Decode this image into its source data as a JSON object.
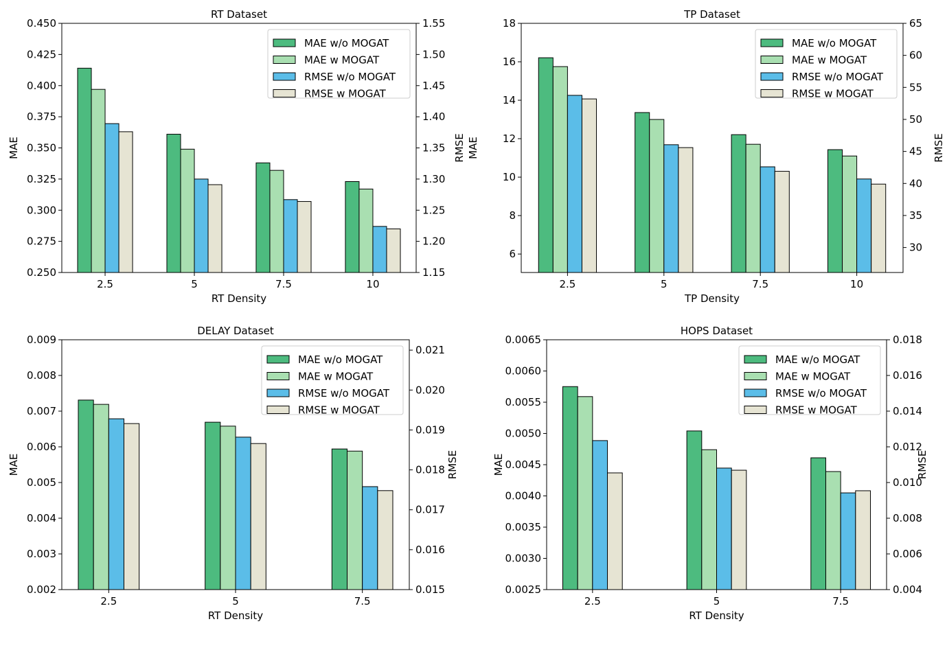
{
  "colors": {
    "mae_wo": "#4dbb7f",
    "mae_w": "#a9dfb1",
    "rmse_wo": "#5bbde8",
    "rmse_w": "#e6e4d3"
  },
  "legend": [
    "MAE w/o MOGAT",
    "MAE w MOGAT",
    "RMSE w/o MOGAT",
    "RMSE w MOGAT"
  ],
  "chart_data": [
    {
      "type": "bar",
      "title": "RT Dataset",
      "xlabel": "RT Density",
      "ylabel": "MAE",
      "y2label": "RMSE",
      "categories": [
        "2.5",
        "5",
        "7.5",
        "10"
      ],
      "ylim": [
        0.25,
        0.45
      ],
      "yticks": [
        0.25,
        0.275,
        0.3,
        0.325,
        0.35,
        0.375,
        0.4,
        0.425,
        0.45
      ],
      "ydec": 3,
      "y2lim": [
        1.15,
        1.55
      ],
      "y2ticks": [
        1.15,
        1.2,
        1.25,
        1.3,
        1.35,
        1.4,
        1.45,
        1.5,
        1.55
      ],
      "y2dec": 2,
      "legend_position": "top-right",
      "series": [
        {
          "name": "MAE w/o MOGAT",
          "axis": "left",
          "values": [
            0.414,
            0.361,
            0.338,
            0.323
          ]
        },
        {
          "name": "MAE w MOGAT",
          "axis": "left",
          "values": [
            0.397,
            0.349,
            0.332,
            0.317
          ]
        },
        {
          "name": "RMSE w/o MOGAT",
          "axis": "right",
          "values": [
            1.389,
            1.3,
            1.267,
            1.224
          ]
        },
        {
          "name": "RMSE w MOGAT",
          "axis": "right",
          "values": [
            1.376,
            1.291,
            1.264,
            1.22
          ]
        }
      ]
    },
    {
      "type": "bar",
      "title": "TP Dataset",
      "xlabel": "TP Density",
      "ylabel": "MAE",
      "y2label": "RMSE",
      "categories": [
        "2.5",
        "5",
        "7.5",
        "10"
      ],
      "ylim": [
        5.04,
        18
      ],
      "yticks": [
        6,
        8,
        10,
        12,
        14,
        16,
        18
      ],
      "ydec": 0,
      "y2lim": [
        26.1,
        65
      ],
      "y2ticks": [
        30,
        35,
        40,
        45,
        50,
        55,
        60,
        65
      ],
      "y2dec": 0,
      "legend_position": "top-right",
      "series": [
        {
          "name": "MAE w/o MOGAT",
          "axis": "left",
          "values": [
            16.21,
            13.36,
            12.21,
            11.43
          ]
        },
        {
          "name": "MAE w MOGAT",
          "axis": "left",
          "values": [
            15.75,
            13.0,
            11.71,
            11.1
          ]
        },
        {
          "name": "RMSE w/o MOGAT",
          "axis": "right",
          "values": [
            53.76,
            46.05,
            42.6,
            40.7
          ]
        },
        {
          "name": "RMSE w MOGAT",
          "axis": "right",
          "values": [
            53.2,
            45.6,
            41.9,
            39.9
          ]
        }
      ]
    },
    {
      "type": "bar",
      "title": "DELAY Dataset",
      "xlabel": "RT Density",
      "ylabel": "MAE",
      "y2label": "RMSE",
      "categories": [
        "2.5",
        "5",
        "7.5"
      ],
      "ylim": [
        0.002,
        0.009
      ],
      "yticks": [
        0.002,
        0.003,
        0.004,
        0.005,
        0.006,
        0.007,
        0.008,
        0.009
      ],
      "ydec": 3,
      "y2lim": [
        0.015,
        0.02126
      ],
      "y2ticks": [
        0.015,
        0.016,
        0.017,
        0.018,
        0.019,
        0.02,
        0.021
      ],
      "y2dec": 3,
      "legend_position": "top-right",
      "series": [
        {
          "name": "MAE w/o MOGAT",
          "axis": "left",
          "values": [
            0.00731,
            0.00669,
            0.00594
          ]
        },
        {
          "name": "MAE w MOGAT",
          "axis": "left",
          "values": [
            0.00719,
            0.00658,
            0.00588
          ]
        },
        {
          "name": "RMSE w/o MOGAT",
          "axis": "right",
          "values": [
            0.01928,
            0.01882,
            0.01758
          ]
        },
        {
          "name": "RMSE w MOGAT",
          "axis": "right",
          "values": [
            0.01916,
            0.01866,
            0.01748
          ]
        }
      ]
    },
    {
      "type": "bar",
      "title": "HOPS Dataset",
      "xlabel": "RT Density",
      "ylabel": "MAE",
      "y2label": "RMSE",
      "categories": [
        "2.5",
        "5",
        "7.5"
      ],
      "ylim": [
        0.0025,
        0.0065
      ],
      "yticks": [
        0.0025,
        0.003,
        0.0035,
        0.004,
        0.0045,
        0.005,
        0.0055,
        0.006,
        0.0065
      ],
      "ydec": 4,
      "y2lim": [
        0.004,
        0.018
      ],
      "y2ticks": [
        0.004,
        0.006,
        0.008,
        0.01,
        0.012,
        0.014,
        0.016,
        0.018
      ],
      "y2dec": 3,
      "legend_position": "top-right",
      "series": [
        {
          "name": "MAE w/o MOGAT",
          "axis": "left",
          "values": [
            0.00575,
            0.00504,
            0.00461
          ]
        },
        {
          "name": "MAE w MOGAT",
          "axis": "left",
          "values": [
            0.00559,
            0.00474,
            0.00439
          ]
        },
        {
          "name": "RMSE w/o MOGAT",
          "axis": "right",
          "values": [
            0.01235,
            0.01081,
            0.00942
          ]
        },
        {
          "name": "RMSE w MOGAT",
          "axis": "right",
          "values": [
            0.01054,
            0.01069,
            0.00954
          ]
        }
      ]
    }
  ]
}
